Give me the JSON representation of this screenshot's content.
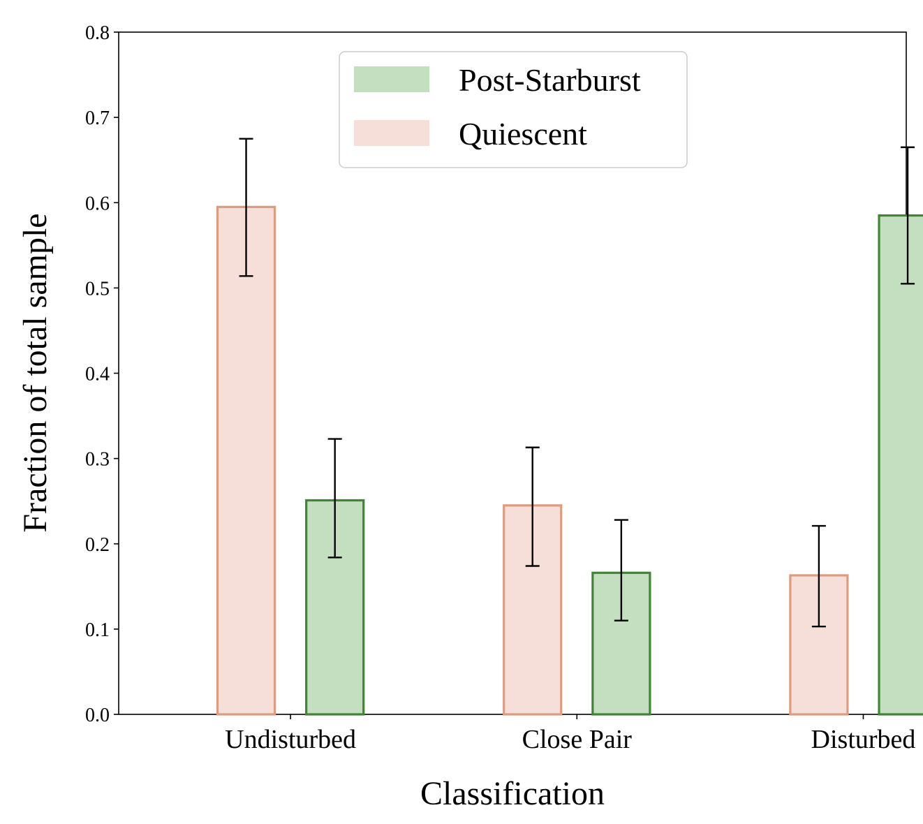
{
  "chart_data": {
    "type": "bar",
    "title": "",
    "xlabel": "Classification",
    "ylabel": "Fraction of total sample",
    "ylim": [
      0.0,
      0.8
    ],
    "yticks": [
      "0.0",
      "0.1",
      "0.2",
      "0.3",
      "0.4",
      "0.5",
      "0.6",
      "0.7",
      "0.8"
    ],
    "categories": [
      "Undisturbed",
      "Close Pair",
      "Disturbed"
    ],
    "grid": false,
    "legend_position": "top-center",
    "legend_order": [
      "Post-Starburst",
      "Quiescent"
    ],
    "series": [
      {
        "name": "Quiescent",
        "values": [
          0.595,
          0.245,
          0.163
        ],
        "err_low": [
          0.514,
          0.174,
          0.103
        ],
        "err_high": [
          0.675,
          0.313,
          0.221
        ],
        "fill": "#f5dfd8",
        "stroke": "#dd9c80"
      },
      {
        "name": "Post-Starburst",
        "values": [
          0.251,
          0.166,
          0.585
        ],
        "err_low": [
          0.184,
          0.11,
          0.505
        ],
        "err_high": [
          0.323,
          0.228,
          0.665
        ],
        "fill": "#c4dec0",
        "stroke": "#3f8632"
      }
    ],
    "error_bar_color": "#000000"
  }
}
